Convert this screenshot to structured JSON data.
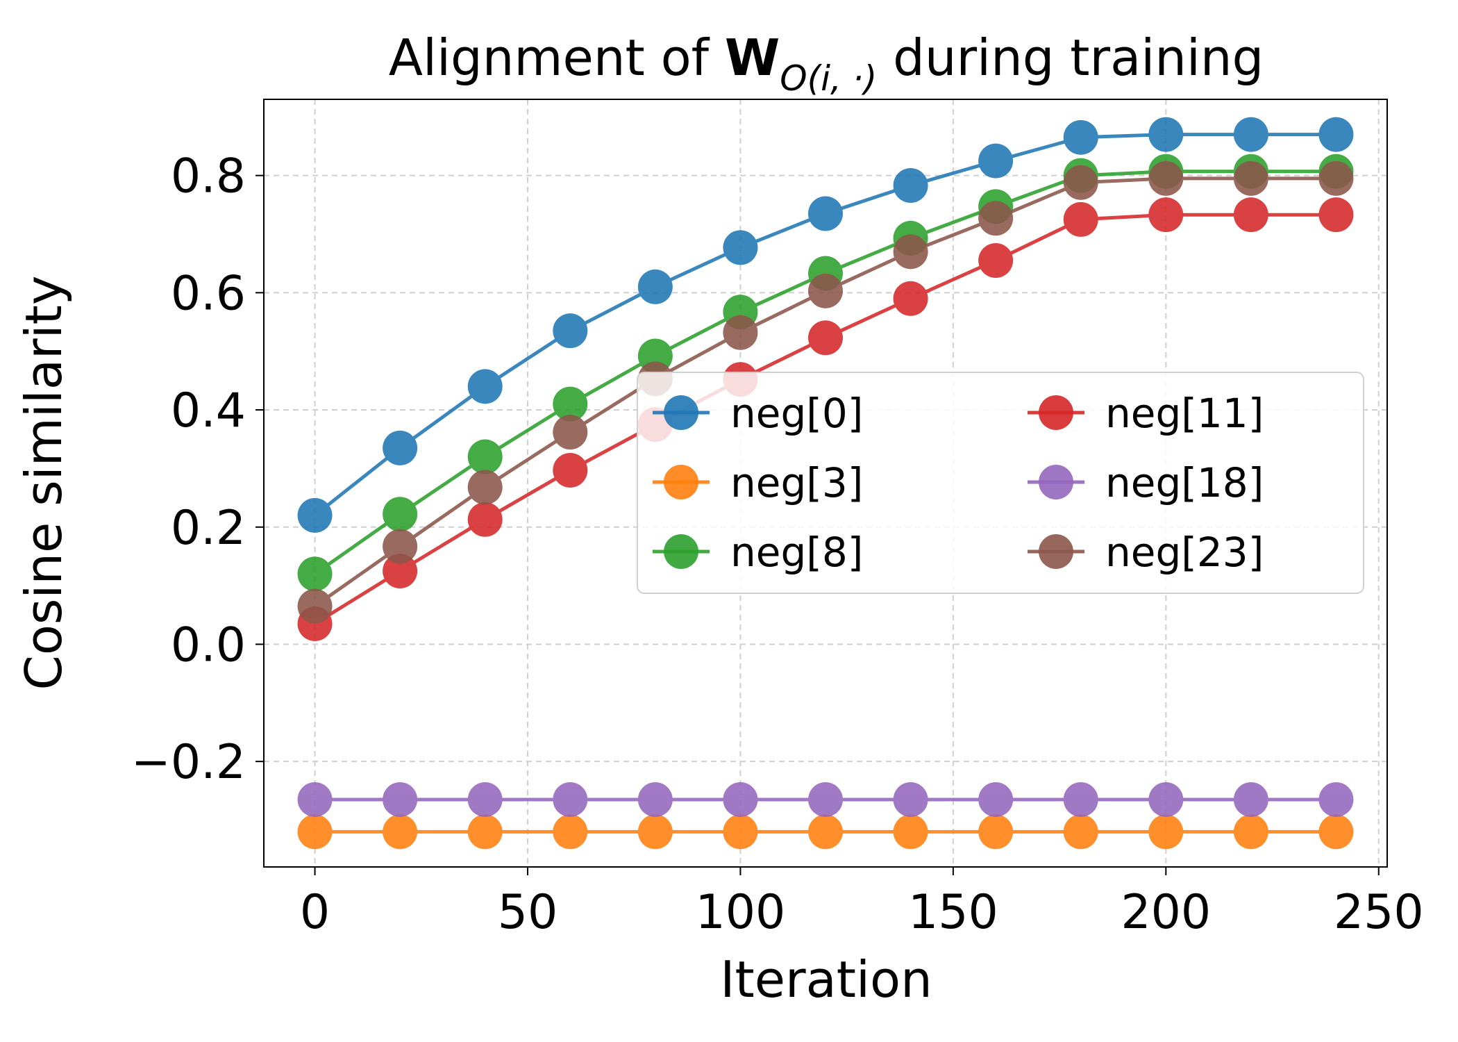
{
  "chart_data": {
    "type": "line",
    "title": {
      "prefix": "Alignment of ",
      "bold_symbol": "W",
      "subscript": "O(i, ·)",
      "suffix": " during training"
    },
    "xlabel": "Iteration",
    "ylabel": "Cosine similarity",
    "xlim": [
      -12,
      252
    ],
    "ylim": [
      -0.38,
      0.93
    ],
    "xticks": [
      0,
      50,
      100,
      150,
      200,
      250
    ],
    "xtick_labels": [
      "0",
      "50",
      "100",
      "150",
      "200",
      "250"
    ],
    "yticks": [
      -0.2,
      0.0,
      0.2,
      0.4,
      0.6,
      0.8
    ],
    "ytick_labels": [
      "−0.2",
      "0.0",
      "0.2",
      "0.4",
      "0.6",
      "0.8"
    ],
    "grid": true,
    "legend_position": "center-right",
    "legend_columns": 2,
    "x": [
      0,
      20,
      40,
      60,
      80,
      100,
      120,
      140,
      160,
      180,
      200,
      220,
      240
    ],
    "series": [
      {
        "name": "neg[0]",
        "color": "#1f77b4",
        "values": [
          0.22,
          0.335,
          0.44,
          0.535,
          0.61,
          0.677,
          0.735,
          0.783,
          0.825,
          0.865,
          0.87,
          0.87,
          0.87
        ]
      },
      {
        "name": "neg[3]",
        "color": "#ff7f0e",
        "values": [
          -0.32,
          -0.32,
          -0.32,
          -0.32,
          -0.32,
          -0.32,
          -0.32,
          -0.32,
          -0.32,
          -0.32,
          -0.32,
          -0.32,
          -0.32
        ]
      },
      {
        "name": "neg[8]",
        "color": "#2ca02c",
        "values": [
          0.12,
          0.222,
          0.32,
          0.41,
          0.492,
          0.567,
          0.633,
          0.693,
          0.747,
          0.8,
          0.807,
          0.807,
          0.807
        ]
      },
      {
        "name": "neg[11]",
        "color": "#d62728",
        "values": [
          0.035,
          0.125,
          0.213,
          0.297,
          0.375,
          0.452,
          0.523,
          0.59,
          0.655,
          0.725,
          0.733,
          0.733,
          0.733
        ]
      },
      {
        "name": "neg[18]",
        "color": "#9467bd",
        "values": [
          -0.265,
          -0.265,
          -0.265,
          -0.265,
          -0.265,
          -0.265,
          -0.265,
          -0.265,
          -0.265,
          -0.265,
          -0.265,
          -0.265,
          -0.265
        ]
      },
      {
        "name": "neg[23]",
        "color": "#8c564b",
        "values": [
          0.065,
          0.167,
          0.268,
          0.362,
          0.453,
          0.532,
          0.603,
          0.67,
          0.727,
          0.788,
          0.795,
          0.795,
          0.795
        ]
      }
    ]
  }
}
